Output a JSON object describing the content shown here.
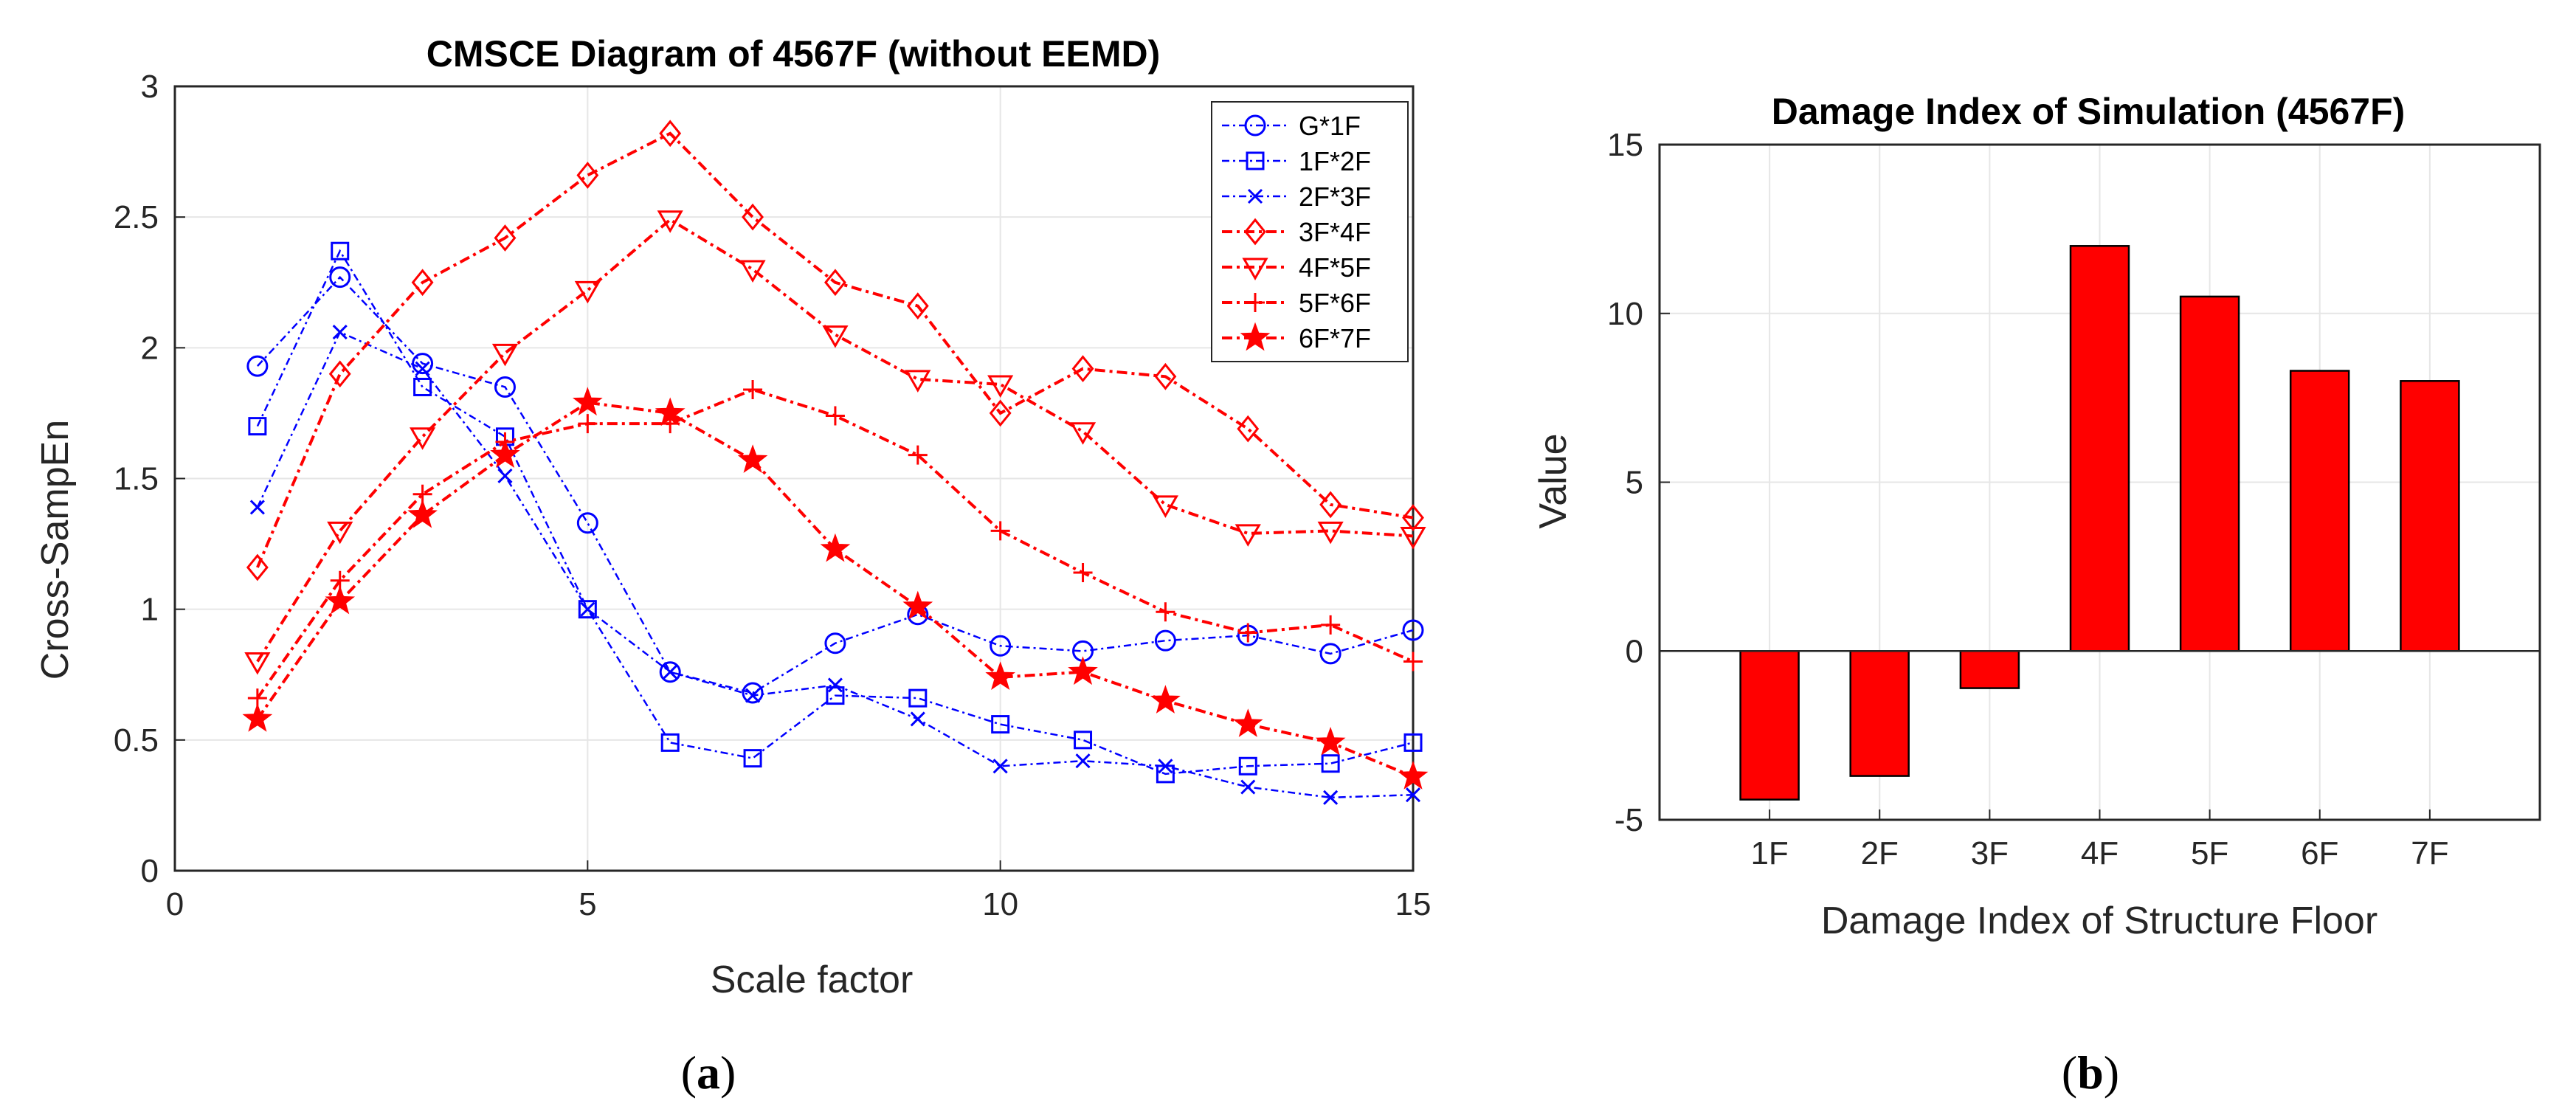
{
  "chart_data": [
    {
      "type": "line",
      "title": "CMSCE Diagram of 4567F (without EEMD)",
      "xlabel": "Scale factor",
      "ylabel": "Cross-SampEn",
      "xlim": [
        0,
        15
      ],
      "ylim": [
        0,
        3
      ],
      "xticks": [
        "0",
        "5",
        "10",
        "15"
      ],
      "yticks": [
        "0",
        "0.5",
        "1",
        "1.5",
        "2",
        "2.5",
        "3"
      ],
      "grid": true,
      "legend_position": "top-right",
      "x": [
        1,
        2,
        3,
        4,
        5,
        6,
        7,
        8,
        9,
        10,
        11,
        12,
        13,
        14,
        15
      ],
      "series": [
        {
          "name": "G*1F",
          "color": "#0000ff",
          "marker": "circle",
          "values": [
            1.93,
            2.27,
            1.94,
            1.85,
            1.33,
            0.76,
            0.68,
            0.87,
            0.98,
            0.86,
            0.84,
            0.88,
            0.9,
            0.83,
            0.92
          ]
        },
        {
          "name": "1F*2F",
          "color": "#0000ff",
          "marker": "square",
          "values": [
            1.7,
            2.37,
            1.85,
            1.66,
            1.0,
            0.49,
            0.43,
            0.67,
            0.66,
            0.56,
            0.5,
            0.37,
            0.4,
            0.41,
            0.49
          ]
        },
        {
          "name": "2F*3F",
          "color": "#0000ff",
          "marker": "x",
          "values": [
            1.39,
            2.06,
            1.92,
            1.51,
            1.0,
            0.76,
            0.67,
            0.71,
            0.58,
            0.4,
            0.42,
            0.4,
            0.32,
            0.28,
            0.29
          ]
        },
        {
          "name": "3F*4F",
          "color": "#ff0000",
          "marker": "diamond",
          "values": [
            1.16,
            1.9,
            2.25,
            2.42,
            2.66,
            2.82,
            2.5,
            2.25,
            2.16,
            1.75,
            1.92,
            1.89,
            1.69,
            1.4,
            1.35
          ]
        },
        {
          "name": "4F*5F",
          "color": "#ff0000",
          "marker": "triangle",
          "values": [
            0.8,
            1.3,
            1.66,
            1.98,
            2.22,
            2.49,
            2.3,
            2.05,
            1.88,
            1.86,
            1.68,
            1.4,
            1.29,
            1.3,
            1.28
          ]
        },
        {
          "name": "5F*6F",
          "color": "#ff0000",
          "marker": "plus",
          "values": [
            0.66,
            1.11,
            1.44,
            1.64,
            1.71,
            1.71,
            1.84,
            1.74,
            1.59,
            1.3,
            1.14,
            0.99,
            0.91,
            0.94,
            0.8
          ]
        },
        {
          "name": "6F*7F",
          "color": "#ff0000",
          "marker": "star",
          "values": [
            0.58,
            1.03,
            1.36,
            1.59,
            1.79,
            1.75,
            1.57,
            1.23,
            1.01,
            0.74,
            0.76,
            0.65,
            0.56,
            0.49,
            0.36
          ]
        }
      ],
      "panel_label": "a"
    },
    {
      "type": "bar",
      "title": "Damage Index of Simulation (4567F)",
      "xlabel": "Damage Index of Structure Floor",
      "ylabel": "Value",
      "categories": [
        "1F",
        "2F",
        "3F",
        "4F",
        "5F",
        "6F",
        "7F"
      ],
      "values": [
        -4.4,
        -3.7,
        -1.1,
        12.0,
        10.5,
        8.3,
        8.0
      ],
      "ylim": [
        -5,
        15
      ],
      "yticks": [
        "-5",
        "0",
        "5",
        "10",
        "15"
      ],
      "grid": true,
      "bar_color": "#ff0000",
      "panel_label": "b"
    }
  ]
}
